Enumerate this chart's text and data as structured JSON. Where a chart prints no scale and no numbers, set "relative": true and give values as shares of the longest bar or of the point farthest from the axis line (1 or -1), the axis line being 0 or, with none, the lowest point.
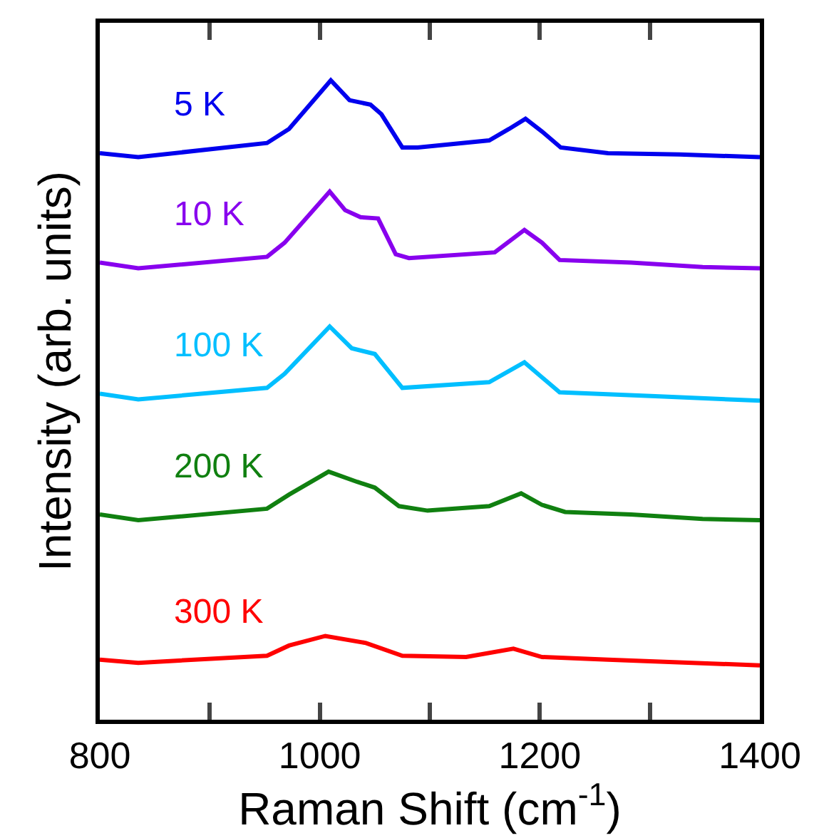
{
  "chart_data": {
    "type": "line",
    "relative": true,
    "xlabel": "Raman Shift (cm$^{-1}$)",
    "ylabel": "Intensity (arb. units)",
    "xlim": [
      800,
      1400
    ],
    "xticks": [
      800,
      {
        "value": 900,
        "label": null
      },
      1000,
      {
        "value": 1100,
        "label": null
      },
      1200,
      {
        "value": 1300,
        "label": null
      },
      1400
    ],
    "marker": "none",
    "line_style": "solid",
    "series": [
      {
        "name": "5 K",
        "color": "#0000ee",
        "x": [
          800,
          835,
          952,
          972,
          1010,
          1027,
          1046,
          1056,
          1075,
          1089,
          1154,
          1172,
          1187,
          1202,
          1219,
          1262,
          1327,
          1400
        ],
        "values": [
          0.886,
          0.88,
          0.902,
          0.924,
          1.0,
          0.969,
          0.962,
          0.947,
          0.895,
          0.895,
          0.906,
          0.924,
          0.94,
          0.92,
          0.895,
          0.886,
          0.884,
          0.88
        ]
      },
      {
        "name": "10 K",
        "color": "#8800ee",
        "x": [
          800,
          835,
          952,
          968,
          1009,
          1023,
          1037,
          1053,
          1069,
          1081,
          1159,
          1186,
          1202,
          1218,
          1283,
          1348,
          1400
        ],
        "values": [
          0.715,
          0.706,
          0.724,
          0.746,
          0.826,
          0.797,
          0.786,
          0.784,
          0.728,
          0.722,
          0.731,
          0.766,
          0.746,
          0.719,
          0.715,
          0.708,
          0.706
        ]
      },
      {
        "name": "100 K",
        "color": "#00bfff",
        "x": [
          800,
          835,
          952,
          968,
          1009,
          1029,
          1050,
          1075,
          1154,
          1186,
          1218,
          1305,
          1400
        ],
        "values": [
          0.51,
          0.501,
          0.519,
          0.541,
          0.615,
          0.581,
          0.572,
          0.519,
          0.528,
          0.559,
          0.512,
          0.506,
          0.499
        ]
      },
      {
        "name": "200 K",
        "color": "#108010",
        "x": [
          800,
          835,
          952,
          972,
          1008,
          1034,
          1050,
          1072,
          1098,
          1154,
          1183,
          1202,
          1223,
          1283,
          1348,
          1400
        ],
        "values": [
          0.321,
          0.312,
          0.33,
          0.352,
          0.388,
          0.372,
          0.363,
          0.334,
          0.327,
          0.334,
          0.354,
          0.336,
          0.325,
          0.321,
          0.314,
          0.312
        ]
      },
      {
        "name": "300 K",
        "color": "#ff0000",
        "x": [
          800,
          835,
          952,
          972,
          1005,
          1042,
          1075,
          1133,
          1176,
          1202,
          1262,
          1400
        ],
        "values": [
          0.094,
          0.089,
          0.1,
          0.116,
          0.131,
          0.12,
          0.1,
          0.098,
          0.111,
          0.098,
          0.094,
          0.085
        ]
      }
    ]
  }
}
